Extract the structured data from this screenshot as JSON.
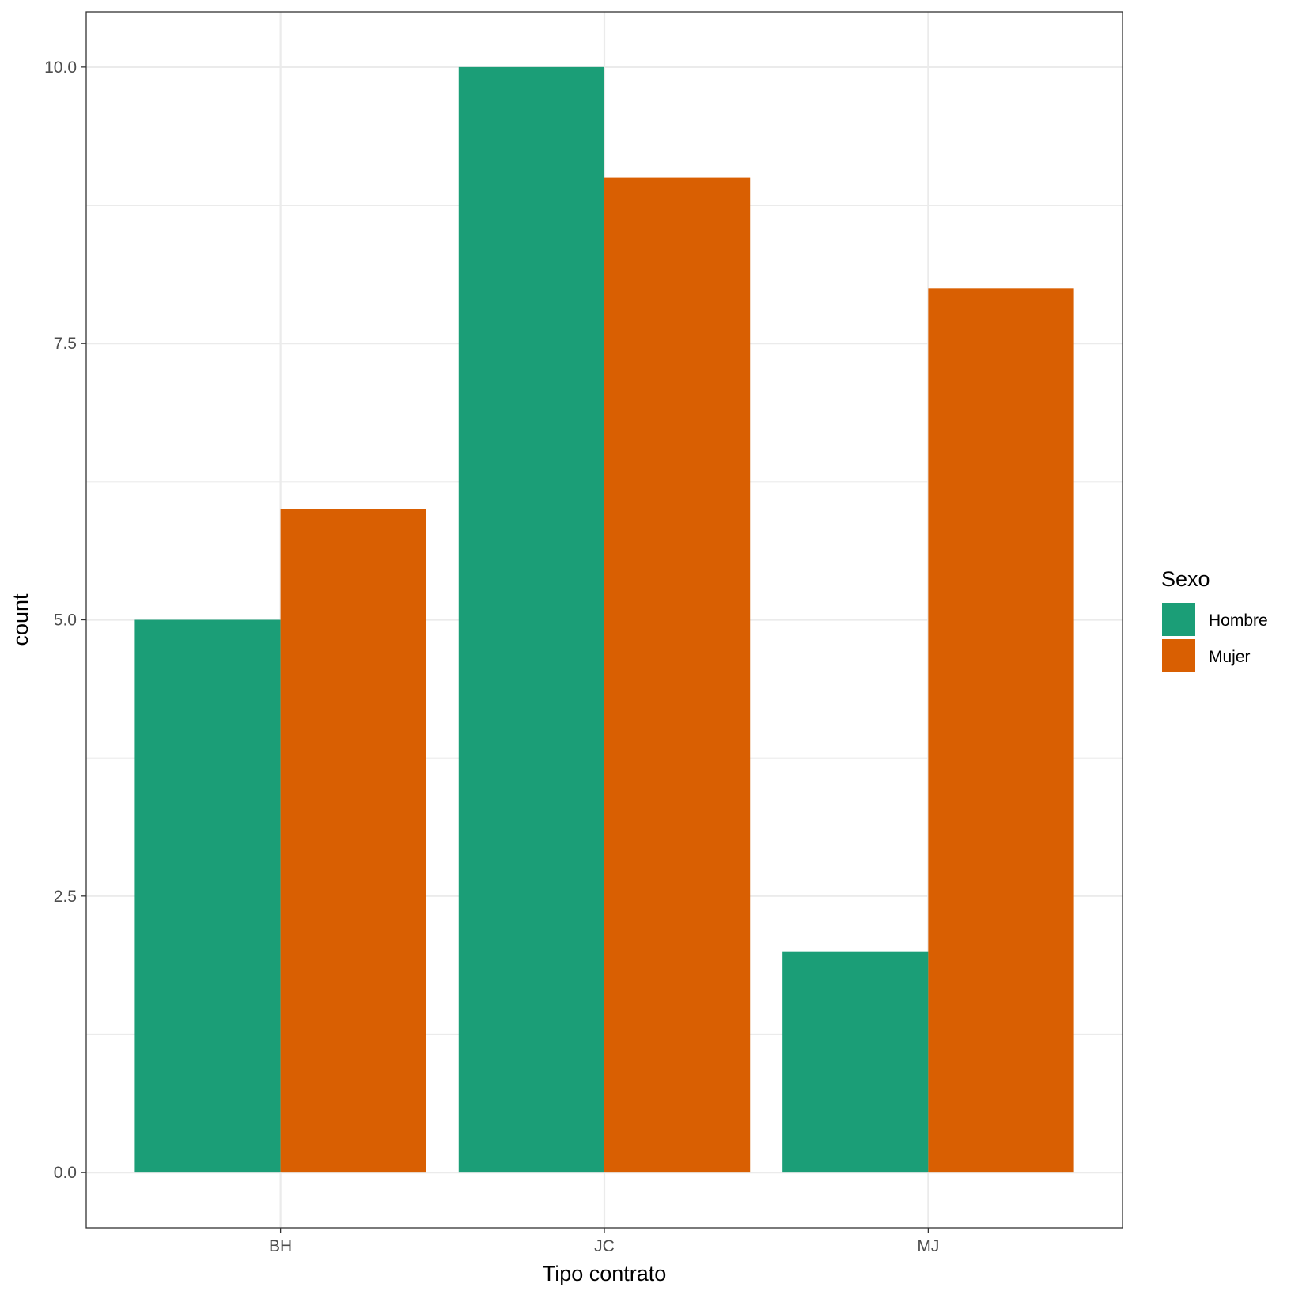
{
  "chart_data": {
    "type": "bar",
    "categories": [
      "BH",
      "JC",
      "MJ"
    ],
    "series": [
      {
        "name": "Hombre",
        "values": [
          5,
          10,
          2
        ],
        "color": "#1B9E77"
      },
      {
        "name": "Mujer",
        "values": [
          6,
          9,
          8
        ],
        "color": "#D95F02"
      }
    ],
    "xlabel": "Tipo contrato",
    "ylabel": "count",
    "ylim": [
      -0.5,
      10.5
    ],
    "yticks": [
      0,
      2.5,
      5,
      7.5,
      10
    ],
    "ytick_labels": [
      "0.0",
      "2.5",
      "5.0",
      "7.5",
      "10.0"
    ],
    "legend": {
      "title": "Sexo",
      "position": "right"
    },
    "grid": true,
    "theme": "bw"
  }
}
